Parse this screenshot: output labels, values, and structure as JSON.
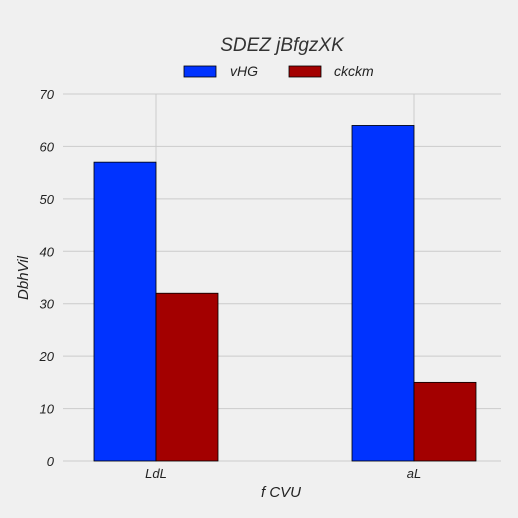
{
  "chart_data": {
    "type": "bar",
    "title": "SDEZ jBfgzXK",
    "xlabel": "f CVU",
    "ylabel": "DbhVil",
    "categories": [
      "LdL",
      "aL"
    ],
    "series": [
      {
        "name": "vHG",
        "values": [
          57,
          64
        ],
        "color": "#0033ff"
      },
      {
        "name": "ckckm",
        "values": [
          32,
          15
        ],
        "color": "#a30000"
      }
    ],
    "ylim": [
      0,
      70
    ],
    "yticks": [
      0,
      10,
      20,
      30,
      40,
      50,
      60,
      70
    ],
    "grid": true,
    "legend_position": "top-center"
  }
}
